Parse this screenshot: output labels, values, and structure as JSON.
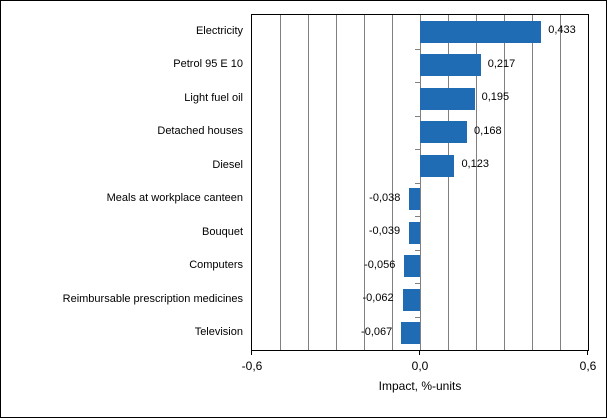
{
  "chart_data": {
    "type": "bar",
    "orientation": "horizontal",
    "title": "",
    "xlabel": "Impact, %-units",
    "xlim": [
      -0.6,
      0.6
    ],
    "grid": true,
    "gridline_interval": 0.1,
    "x_ticks": [
      -0.6,
      0.0,
      0.6
    ],
    "x_tick_labels": [
      "-0,6",
      "0,0",
      "0,6"
    ],
    "categories": [
      "Electricity",
      "Petrol 95 E 10",
      "Light fuel oil",
      "Detached houses",
      "Diesel",
      "Meals at workplace canteen",
      "Bouquet",
      "Computers",
      "Reimbursable prescription medicines",
      "Television"
    ],
    "values": [
      0.433,
      0.217,
      0.195,
      0.168,
      0.123,
      -0.038,
      -0.039,
      -0.056,
      -0.062,
      -0.067
    ],
    "value_labels": [
      "0,433",
      "0,217",
      "0,195",
      "0,168",
      "0,123",
      "-0,038",
      "-0,039",
      "-0,056",
      "-0,062",
      "-0,067"
    ],
    "legend": null,
    "colors": {
      "bar": "#1F6BB4",
      "gridline": "#808080",
      "axis": "#000000",
      "background": "#FFFFFF",
      "text": "#000000"
    }
  }
}
